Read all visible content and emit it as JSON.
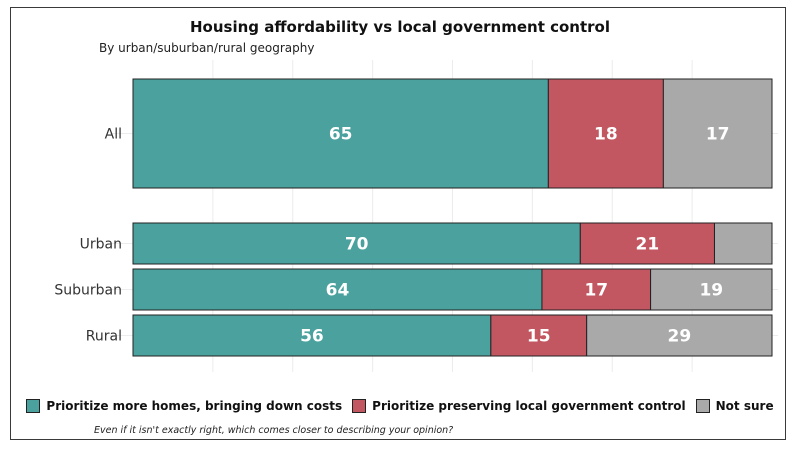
{
  "chart_data": {
    "type": "bar",
    "orientation": "horizontal-stacked-percent",
    "title": "Housing affordability vs local government control",
    "subtitle": "By urban/suburban/rural geography",
    "footnote": "Even if it isn't exactly right, which comes closer to describing your opinion?",
    "xlim": [
      0,
      100
    ],
    "grid": true,
    "legend_placement": "bottom",
    "categories": [
      "All",
      "Urban",
      "Suburban",
      "Rural"
    ],
    "series": [
      {
        "name": "Prioritize more homes, bringing down costs",
        "color": "#4aa19e",
        "values": [
          65,
          70,
          64,
          56
        ],
        "labels": [
          "65",
          "70",
          "64",
          "56"
        ]
      },
      {
        "name": "Prioritize preserving local government control",
        "color": "#c25761",
        "values": [
          18,
          21,
          17,
          15
        ],
        "labels": [
          "18",
          "21",
          "17",
          "15"
        ]
      },
      {
        "name": "Not sure",
        "color": "#a9a9a9",
        "values": [
          17,
          9,
          19,
          29
        ],
        "labels": [
          "17",
          "",
          "19",
          "29"
        ]
      }
    ]
  }
}
